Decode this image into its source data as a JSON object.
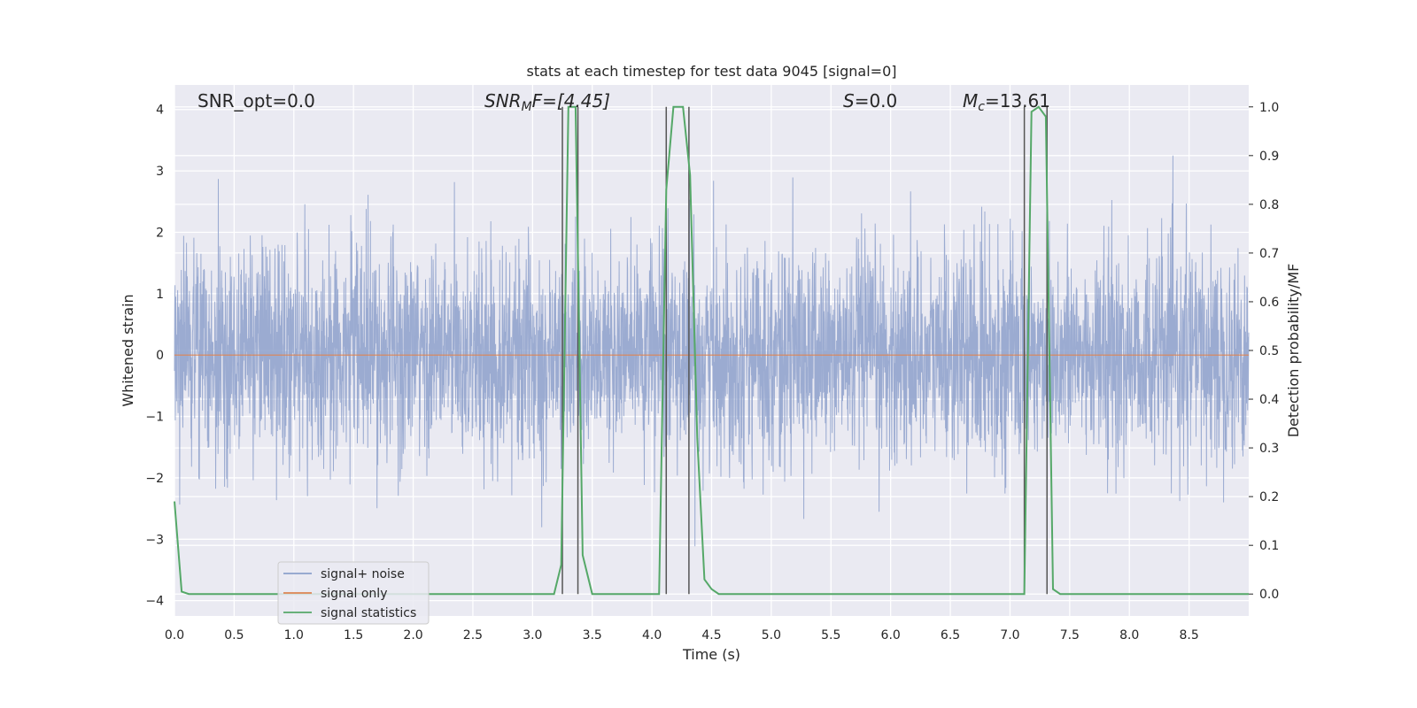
{
  "chart_data": {
    "type": "line",
    "title": "stats at each timestep for test data 9045 [signal=0]",
    "xlabel": "Time (s)",
    "ylabel": "Whitened strain",
    "y2label": "Detection probability/MF",
    "xlim": [
      0.0,
      9.0
    ],
    "ylim": [
      -4.25,
      4.4
    ],
    "y2lim": [
      -0.045,
      1.045
    ],
    "xticks": [
      "0.0",
      "0.5",
      "1.0",
      "1.5",
      "2.0",
      "2.5",
      "3.0",
      "3.5",
      "4.0",
      "4.5",
      "5.0",
      "5.5",
      "6.0",
      "6.5",
      "7.0",
      "7.5",
      "8.0",
      "8.5"
    ],
    "yticks": [
      "−4",
      "−3",
      "−2",
      "−1",
      "0",
      "1",
      "2",
      "3",
      "4"
    ],
    "y2ticks": [
      "0.0",
      "0.1",
      "0.2",
      "0.3",
      "0.4",
      "0.5",
      "0.6",
      "0.7",
      "0.8",
      "0.9",
      "1.0"
    ],
    "grid": true,
    "legend_position": "lower-left",
    "annotations": {
      "snr_opt": "SNR_opt=0.0",
      "snr_mf_main": "SNR",
      "snr_mf_sub": "M",
      "snr_mf_rest": "F=[4.45]",
      "s_main": "S",
      "s_rest": "=0.0",
      "mc_main": "M",
      "mc_sub": "c",
      "mc_rest": "=13.61"
    },
    "series": [
      {
        "name": "signal+ noise",
        "color": "#8da0cb",
        "axis": "left",
        "noise_std": 0.85,
        "num_samples": 4096
      },
      {
        "name": "signal only",
        "color": "#dd8452",
        "axis": "left",
        "values": [
          0,
          0
        ]
      },
      {
        "name": "signal statistics",
        "color": "#55a868",
        "axis": "right",
        "x": [
          0.0,
          0.06,
          0.12,
          3.18,
          3.24,
          3.3,
          3.36,
          3.42,
          3.5,
          4.06,
          4.12,
          4.18,
          4.26,
          4.32,
          4.38,
          4.44,
          4.5,
          4.56,
          4.62,
          7.12,
          7.18,
          7.24,
          7.3,
          7.36,
          7.42,
          9.0
        ],
        "y": [
          0.19,
          0.005,
          0.0,
          0.0,
          0.06,
          1.0,
          1.0,
          0.08,
          0.0,
          0.0,
          0.83,
          1.0,
          1.0,
          0.86,
          0.32,
          0.03,
          0.01,
          0.0,
          0.0,
          0.0,
          0.99,
          1.0,
          0.98,
          0.01,
          0.0,
          0.0
        ]
      }
    ],
    "vlines": [
      3.25,
      3.38,
      4.12,
      4.31,
      7.12,
      7.31
    ],
    "vline_color": "#555555"
  }
}
